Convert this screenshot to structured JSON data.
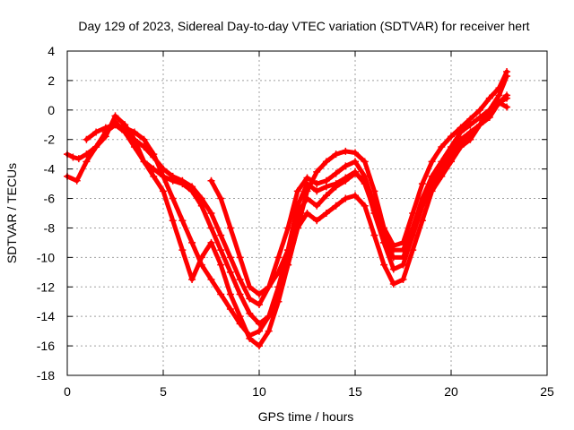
{
  "chart_data": {
    "type": "scatter",
    "title": "Day 129 of 2023, Sidereal Day-to-day VTEC variation (SDTVAR) for receiver hert",
    "xlabel": "GPS time / hours",
    "ylabel": "SDTVAR / TECUs",
    "xlim": [
      0,
      25
    ],
    "ylim": [
      -18,
      4
    ],
    "xticks": [
      "0",
      "5",
      "10",
      "15",
      "20",
      "25"
    ],
    "yticks": [
      "-18",
      "-16",
      "-14",
      "-12",
      "-10",
      "-8",
      "-6",
      "-4",
      "-2",
      "0",
      "2",
      "4"
    ],
    "grid": true,
    "marker": "+",
    "color": "#ff0000",
    "series": [
      {
        "x": [
          0.0,
          0.3,
          0.6,
          1.0,
          1.5,
          2.0,
          2.5,
          3.0,
          3.5,
          4.0,
          4.5,
          5.0,
          5.5,
          6.0,
          6.5,
          7.0,
          7.5,
          8.0,
          8.5,
          9.0,
          9.5,
          10.0,
          10.5,
          11.0,
          11.5,
          12.0,
          12.5,
          13.0,
          13.5,
          14.0,
          14.5,
          15.0,
          15.5,
          16.0,
          16.5,
          17.0,
          17.5,
          18.0,
          18.5,
          19.0,
          19.5,
          20.0,
          20.5,
          21.0,
          21.5,
          22.0,
          22.5,
          22.9
        ],
        "y": [
          -3.0,
          -3.2,
          -3.3,
          -3.0,
          -2.5,
          -1.8,
          -0.4,
          -1.0,
          -2.0,
          -2.5,
          -3.2,
          -4.0,
          -4.5,
          -4.8,
          -5.2,
          -6.0,
          -7.0,
          -8.5,
          -10.0,
          -11.5,
          -12.8,
          -13.2,
          -12.0,
          -10.0,
          -8.0,
          -5.5,
          -4.6,
          -5.0,
          -4.8,
          -4.3,
          -3.8,
          -3.5,
          -4.5,
          -6.5,
          -8.5,
          -9.5,
          -9.5,
          -8.0,
          -6.0,
          -4.5,
          -3.5,
          -2.5,
          -1.5,
          -1.0,
          -0.5,
          0.0,
          0.5,
          0.2
        ]
      },
      {
        "x": [
          2.0,
          2.5,
          3.0,
          3.5,
          4.0,
          4.5,
          5.0,
          5.5,
          6.0,
          6.5,
          7.0,
          7.5,
          8.0,
          8.5,
          9.0,
          9.5,
          10.0,
          10.5,
          11.0,
          11.5,
          12.0,
          12.5,
          13.0,
          13.5,
          14.0,
          14.5,
          15.0,
          15.5,
          16.0,
          16.5,
          17.0,
          17.5,
          18.0,
          18.5,
          19.0,
          19.5,
          20.0,
          20.5,
          21.0,
          21.5,
          22.0,
          22.5,
          22.9
        ],
        "y": [
          -1.5,
          -1.0,
          -1.5,
          -2.5,
          -3.5,
          -4.0,
          -4.5,
          -4.8,
          -5.0,
          -5.5,
          -6.5,
          -8.0,
          -9.5,
          -11.0,
          -12.5,
          -13.8,
          -14.5,
          -14.0,
          -12.0,
          -9.5,
          -7.0,
          -6.0,
          -6.5,
          -5.8,
          -5.2,
          -4.8,
          -4.3,
          -4.8,
          -7.0,
          -9.0,
          -10.0,
          -10.0,
          -8.5,
          -6.5,
          -5.0,
          -4.0,
          -3.0,
          -2.0,
          -1.5,
          -1.0,
          -0.5,
          0.5,
          0.8
        ]
      },
      {
        "x": [
          0.0,
          0.5,
          1.0,
          1.5,
          2.0,
          2.5,
          3.0,
          3.5,
          4.0,
          4.5,
          5.0,
          5.5,
          6.0,
          6.5,
          7.0,
          7.5,
          8.0,
          8.5,
          9.0,
          9.5,
          10.0,
          10.5,
          11.0,
          11.5,
          12.0,
          12.5,
          13.0,
          13.5,
          14.0,
          14.5,
          15.0,
          15.5,
          16.0,
          16.5,
          17.0,
          17.5,
          18.0,
          18.5,
          19.0,
          19.5,
          20.0,
          20.5,
          21.0,
          21.5,
          22.0,
          22.5,
          22.9
        ],
        "y": [
          -4.5,
          -4.8,
          -3.5,
          -2.5,
          -1.5,
          -0.8,
          -1.5,
          -2.0,
          -3.5,
          -4.5,
          -5.5,
          -7.5,
          -9.5,
          -11.5,
          -10.0,
          -9.0,
          -10.5,
          -12.5,
          -14.0,
          -15.5,
          -16.0,
          -15.0,
          -13.0,
          -10.5,
          -8.0,
          -7.0,
          -7.5,
          -7.0,
          -6.5,
          -6.0,
          -5.8,
          -6.5,
          -8.5,
          -10.5,
          -11.8,
          -11.5,
          -9.5,
          -7.5,
          -5.5,
          -4.5,
          -3.5,
          -2.5,
          -2.0,
          -1.0,
          0.0,
          1.0,
          2.3
        ]
      },
      {
        "x": [
          1.0,
          1.5,
          2.0,
          2.5,
          3.0,
          3.5,
          4.0,
          4.5,
          5.0,
          5.5,
          6.0,
          6.5,
          7.0,
          7.5,
          8.0,
          8.5,
          9.0,
          9.5,
          10.0,
          10.5,
          11.0,
          11.5,
          12.0,
          12.5,
          13.0,
          13.5,
          14.0,
          14.5,
          15.0,
          15.5,
          16.0,
          16.5,
          17.0,
          17.5,
          18.0,
          18.5,
          19.0,
          19.5,
          20.0,
          20.5,
          21.0,
          21.5,
          22.0,
          22.5,
          22.9
        ],
        "y": [
          -2.0,
          -1.5,
          -1.2,
          -1.0,
          -1.2,
          -1.5,
          -2.0,
          -3.0,
          -4.5,
          -6.0,
          -7.5,
          -9.0,
          -10.5,
          -11.5,
          -12.5,
          -13.5,
          -14.5,
          -15.3,
          -15.0,
          -14.0,
          -12.5,
          -10.5,
          -8.0,
          -5.5,
          -4.2,
          -3.5,
          -3.0,
          -2.8,
          -2.9,
          -3.5,
          -5.5,
          -8.0,
          -9.2,
          -9.0,
          -7.0,
          -5.0,
          -3.5,
          -2.5,
          -1.8,
          -1.2,
          -0.6,
          0.0,
          0.8,
          1.5,
          2.6
        ]
      },
      {
        "x": [
          7.5,
          8.0,
          8.5,
          9.0,
          9.5,
          10.0,
          10.5,
          11.0,
          11.5,
          12.0,
          12.5,
          13.0,
          13.5,
          14.0,
          14.5,
          15.0,
          15.5,
          16.0,
          16.5,
          17.0,
          17.5,
          18.0,
          18.5,
          19.0,
          19.5,
          20.0,
          20.5,
          21.0,
          21.5,
          22.0,
          22.5,
          22.9
        ],
        "y": [
          -4.8,
          -6.0,
          -8.0,
          -10.0,
          -12.0,
          -12.5,
          -12.0,
          -11.0,
          -9.5,
          -6.5,
          -5.0,
          -5.5,
          -5.2,
          -5.0,
          -4.6,
          -4.2,
          -5.0,
          -6.8,
          -9.0,
          -10.8,
          -10.5,
          -8.5,
          -6.5,
          -5.0,
          -4.2,
          -3.2,
          -2.3,
          -1.8,
          -1.0,
          -0.2,
          0.5,
          1.0
        ]
      }
    ]
  }
}
